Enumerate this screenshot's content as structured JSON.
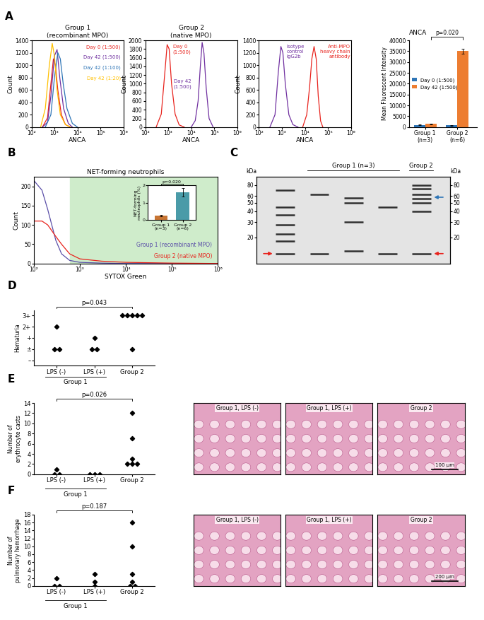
{
  "chart_data": [
    {
      "panel": "A",
      "type": "line",
      "title": "Group 1\n(recombinant MPO)",
      "x_label": "ANCA",
      "y_label": "Count",
      "log": "x",
      "xlim": [
        100,
        1000000
      ],
      "xticks": [
        {
          "value": 100,
          "label": "10²"
        },
        {
          "value": 1000,
          "label": "10³"
        },
        {
          "value": 10000,
          "label": "10⁴"
        },
        {
          "value": 100000,
          "label": "10⁵"
        },
        {
          "value": 1000000,
          "label": "10⁶"
        }
      ],
      "ylim": [
        0,
        1400
      ],
      "yticks": [
        0,
        200,
        400,
        600,
        800,
        1000,
        1200,
        1400
      ],
      "series": [
        {
          "name": "Day 0 (1:500)",
          "color": "#e8231d",
          "x": [
            300,
            500,
            700,
            900,
            1100,
            1400,
            2000,
            3000,
            5000
          ],
          "values": [
            0,
            150,
            700,
            1100,
            1000,
            600,
            200,
            40,
            0
          ]
        },
        {
          "name": "Day 42 (1:500)",
          "color": "#7030a0",
          "x": [
            300,
            500,
            700,
            1000,
            1300,
            1700,
            2500,
            4000,
            6000
          ],
          "values": [
            0,
            80,
            500,
            1150,
            1250,
            800,
            300,
            60,
            0
          ]
        },
        {
          "name": "Day 42 (1:100)",
          "color": "#2e75b6",
          "x": [
            400,
            700,
            1000,
            1400,
            1800,
            2400,
            3500,
            6000,
            10000
          ],
          "values": [
            0,
            200,
            800,
            1200,
            1100,
            700,
            300,
            60,
            0
          ]
        },
        {
          "name": "Day 42 (1:20)",
          "color": "#ffc000",
          "x": [
            250,
            400,
            600,
            800,
            1000,
            1300,
            1800,
            3000,
            5000
          ],
          "values": [
            0,
            300,
            1000,
            1350,
            1150,
            600,
            200,
            40,
            0
          ]
        }
      ]
    },
    {
      "panel": "A",
      "type": "line",
      "title": "Group 2\n(native MPO)",
      "x_label": "ANCA",
      "y_label": "Count",
      "log": "x",
      "xlim": [
        100,
        1000000
      ],
      "xticks": [
        {
          "value": 100,
          "label": "10²"
        },
        {
          "value": 1000,
          "label": "10³"
        },
        {
          "value": 10000,
          "label": "10⁴"
        },
        {
          "value": 100000,
          "label": "10⁵"
        },
        {
          "value": 1000000,
          "label": "10⁶"
        }
      ],
      "ylim": [
        0,
        2000
      ],
      "yticks": [
        0,
        200,
        400,
        600,
        800,
        1000,
        1200,
        1400,
        1600,
        1800,
        2000
      ],
      "series": [
        {
          "name": "Day 0\n(1:500)",
          "color": "#e8231d",
          "x": [
            300,
            500,
            700,
            900,
            1100,
            1400,
            2000,
            3000,
            5000
          ],
          "values": [
            0,
            300,
            1200,
            1900,
            1800,
            1000,
            300,
            50,
            0
          ]
        },
        {
          "name": "Day 42\n(1:500)",
          "color": "#7030a0",
          "x": [
            10000,
            15000,
            20000,
            25000,
            30000,
            36000,
            45000,
            60000,
            90000
          ],
          "values": [
            0,
            150,
            600,
            1400,
            1950,
            1700,
            900,
            200,
            0
          ]
        }
      ]
    },
    {
      "panel": "A",
      "type": "line",
      "x_label": "ANCA",
      "y_label": "Count",
      "log": "x",
      "xlim": [
        100,
        1000000
      ],
      "xticks": [
        {
          "value": 100,
          "label": "10²"
        },
        {
          "value": 1000,
          "label": "10³"
        },
        {
          "value": 10000,
          "label": "10⁴"
        },
        {
          "value": 100000,
          "label": "10⁵"
        },
        {
          "value": 1000000,
          "label": "10⁶"
        }
      ],
      "ylim": [
        0,
        1400
      ],
      "yticks": [
        0,
        200,
        400,
        600,
        800,
        1000,
        1200,
        1400
      ],
      "series": [
        {
          "name": "Isotype\ncontrol\nIgG2b",
          "color": "#7030a0",
          "x": [
            300,
            500,
            700,
            900,
            1100,
            1400,
            2000,
            3000,
            5000
          ],
          "values": [
            0,
            200,
            900,
            1300,
            1200,
            700,
            200,
            40,
            0
          ]
        },
        {
          "name": "Anti-MPO\nheavy chain\nantibody",
          "color": "#e8231d",
          "x": [
            8000,
            12000,
            16000,
            20000,
            25000,
            31000,
            38000,
            48000,
            60000
          ],
          "values": [
            0,
            200,
            650,
            1100,
            1300,
            1100,
            500,
            100,
            0
          ]
        }
      ]
    },
    {
      "panel": "A",
      "type": "bar",
      "title": "ANCA",
      "y_label": "Mean Fluorescent Intensity",
      "categories": [
        "Group 1\n(n=3)",
        "Group 2\n(n=6)"
      ],
      "series": [
        {
          "name": "Day 0 (1:500)",
          "color": "#2e75b6",
          "values": [
            1000,
            800
          ],
          "errors": [
            100,
            100
          ]
        },
        {
          "name": "Day 42 (1:500)",
          "color": "#ed7d31",
          "values": [
            1500,
            35000
          ],
          "errors": [
            150,
            1200
          ]
        }
      ],
      "ylim": [
        0,
        40000
      ],
      "yticks": [
        0,
        5000,
        10000,
        15000,
        20000,
        25000,
        30000,
        35000,
        40000
      ],
      "legend": "center left",
      "p_value": "p=0.020"
    },
    {
      "panel": "B",
      "type": "line",
      "title": "NET-forming neutrophils",
      "x_label": "SYTOX Green",
      "y_label": "Count",
      "log": "x",
      "xlim": [
        100,
        1000000
      ],
      "xticks": [
        {
          "value": 100,
          "label": "10²"
        },
        {
          "value": 1000,
          "label": "10³"
        },
        {
          "value": 10000,
          "label": "10⁴"
        },
        {
          "value": 100000,
          "label": "10⁵"
        },
        {
          "value": 1000000,
          "label": "10⁶"
        }
      ],
      "ylim": [
        0,
        225
      ],
      "yticks": [
        0,
        50,
        100,
        150,
        200
      ],
      "gate": [
        600,
        1000000
      ],
      "series": [
        {
          "name": "Group 1 (recombinant MPO)",
          "color": "#5b4fa8",
          "x": [
            100,
            150,
            200,
            300,
            400,
            600,
            1000,
            3000,
            10000,
            100000,
            1000000
          ],
          "values": [
            215,
            190,
            140,
            60,
            25,
            8,
            3,
            1,
            0,
            0,
            0
          ]
        },
        {
          "name": "Group 2 (native MPO)",
          "color": "#e8231d",
          "x": [
            100,
            150,
            200,
            300,
            400,
            600,
            1000,
            3000,
            10000,
            100000,
            1000000
          ],
          "values": [
            110,
            110,
            100,
            70,
            50,
            25,
            12,
            6,
            3,
            1,
            0
          ]
        }
      ],
      "inset": {
        "type": "bar",
        "y_label": "NET-forming\nneutrophils (%)",
        "categories": [
          "Group 1\n(n=3)",
          "Group 2\n(n=6)"
        ],
        "values": [
          0.25,
          1.6
        ],
        "errors": [
          0.03,
          0.25
        ],
        "colors": [
          "#c87533",
          "#4a9ba8"
        ],
        "ylim": [
          0,
          2
        ],
        "yticks": [
          0,
          1,
          2
        ],
        "p_value": "p=0.020"
      }
    },
    {
      "panel": "C",
      "type": "blot",
      "y_label": "kDa",
      "log": "y",
      "ylim": [
        10,
        100
      ],
      "yticks": [
        80,
        60,
        50,
        40,
        30,
        20
      ],
      "y2lim": [
        10,
        100
      ],
      "y2ticks": [
        80,
        60,
        50,
        40,
        30,
        20
      ],
      "lanes": [
        {
          "bands": [
            70,
            45,
            36,
            28,
            22,
            18,
            13
          ],
          "arrows": [
            {
              "kDa": 13,
              "color": "#e8231d",
              "side": "left"
            }
          ]
        },
        {
          "group": "Group 1 (n=3)",
          "bands": [
            62,
            13
          ]
        },
        {
          "group": "Group 1 (n=3)",
          "bands": [
            57,
            50,
            30,
            14
          ]
        },
        {
          "group": "Group 1 (n=3)",
          "bands": [
            45,
            13
          ]
        },
        {
          "group": "Group 2",
          "bands": [
            80,
            72,
            62,
            56,
            50,
            40,
            13
          ],
          "arrows": [
            {
              "kDa": 58,
              "color": "#2e75b6",
              "side": "right"
            },
            {
              "kDa": 13,
              "color": "#e8231d",
              "side": "right"
            }
          ]
        }
      ]
    },
    {
      "panel": "D",
      "type": "scatter",
      "y_label": "Hematuria",
      "y_categories": [
        "–",
        "±",
        "+",
        "2+",
        "3+"
      ],
      "categories": [
        "LPS (-)",
        "LPS (+)",
        "Group 2"
      ],
      "group_label": {
        "text": "Group 1",
        "members": [
          "LPS (-)",
          "LPS (+)"
        ]
      },
      "values": [
        [
          "2+",
          "±",
          "±"
        ],
        [
          "+",
          "±",
          "±"
        ],
        [
          "3+",
          "3+",
          "3+",
          "3+",
          "3+",
          "±"
        ]
      ],
      "marker": "diamond",
      "color": "#000000",
      "p_value": "p=0.043"
    },
    {
      "panel": "E",
      "type": "scatter",
      "y_label": "Number of\nerythrocyte casts",
      "ylim": [
        0,
        14
      ],
      "yticks": [
        0,
        2,
        4,
        6,
        8,
        10,
        12,
        14
      ],
      "categories": [
        "LPS (-)",
        "LPS (+)",
        "Group 2"
      ],
      "group_label": {
        "text": "Group 1",
        "members": [
          "LPS (-)",
          "LPS (+)"
        ]
      },
      "values": [
        [
          1,
          0,
          0
        ],
        [
          0,
          0,
          0
        ],
        [
          12,
          7,
          3,
          2,
          2,
          2
        ]
      ],
      "marker": "diamond",
      "color": "#000000",
      "p_value": "p=0.026",
      "micrographs": {
        "titles": [
          "Group 1, LPS (-)",
          "Group 1, LPS (+)",
          "Group 2"
        ],
        "scale_bar": "100 μm"
      }
    },
    {
      "panel": "F",
      "type": "scatter",
      "y_label": "Number of\npulmonary hemorrhage",
      "ylim": [
        0,
        18
      ],
      "yticks": [
        0,
        2,
        4,
        6,
        8,
        10,
        12,
        14,
        16,
        18
      ],
      "categories": [
        "LPS (-)",
        "LPS (+)",
        "Group 2"
      ],
      "group_label": {
        "text": "Group 1",
        "members": [
          "LPS (-)",
          "LPS (+)"
        ]
      },
      "values": [
        [
          2,
          0,
          0
        ],
        [
          3,
          1,
          0
        ],
        [
          16,
          10,
          3,
          1,
          0,
          0
        ]
      ],
      "marker": "diamond",
      "color": "#000000",
      "p_value": "p=0.187",
      "micrographs": {
        "titles": [
          "Group 1, LPS (-)",
          "Group 1, LPS (+)",
          "Group 2"
        ],
        "scale_bar": "200 μm"
      }
    }
  ]
}
